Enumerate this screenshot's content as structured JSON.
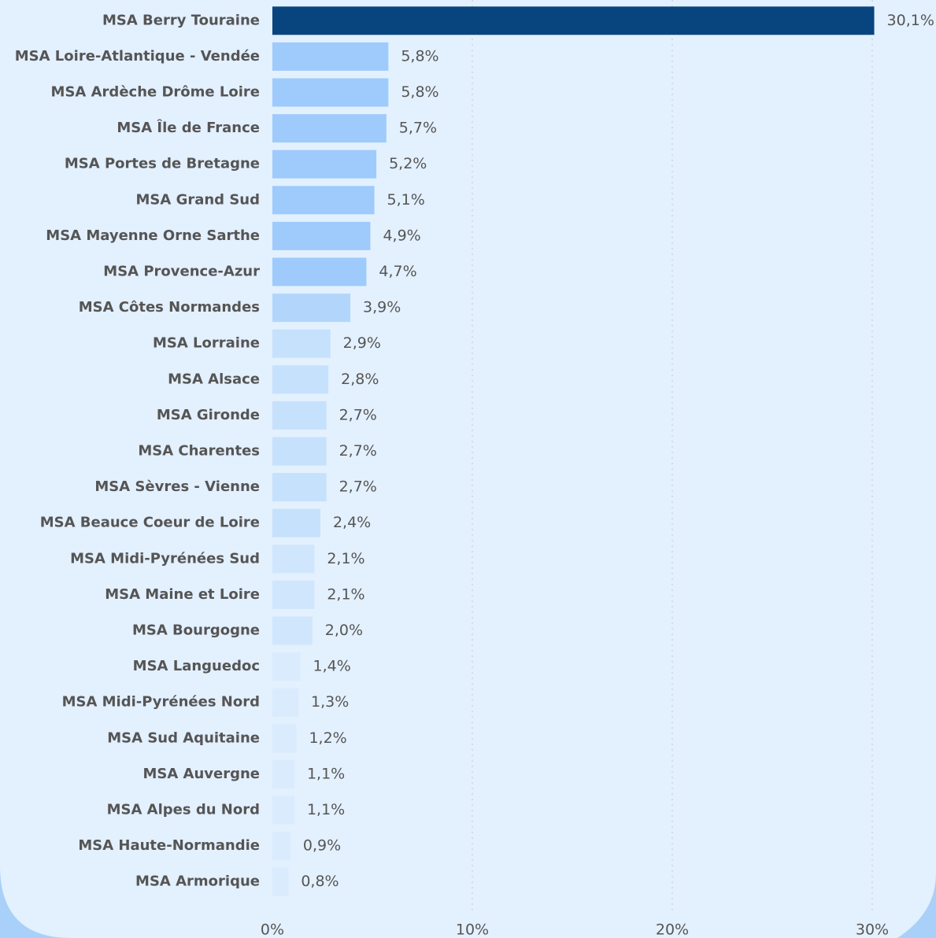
{
  "chart_data": {
    "type": "barh",
    "categories": [
      "MSA Berry Touraine",
      "MSA Loire-Atlantique - Vendée",
      "MSA Ardèche Drôme Loire",
      "MSA Île de France",
      "MSA Portes de Bretagne",
      "MSA Grand Sud",
      "MSA Mayenne Orne Sarthe",
      "MSA Provence-Azur",
      "MSA Côtes Normandes",
      "MSA Lorraine",
      "MSA Alsace",
      "MSA Gironde",
      "MSA Charentes",
      "MSA Sèvres - Vienne",
      "MSA Beauce Coeur de Loire",
      "MSA Midi-Pyrénées Sud",
      "MSA Maine et Loire",
      "MSA Bourgogne",
      "MSA Languedoc",
      "MSA Midi-Pyrénées Nord",
      "MSA Sud Aquitaine",
      "MSA Auvergne",
      "MSA Alpes du Nord",
      "MSA Haute-Normandie",
      "MSA Armorique"
    ],
    "values": [
      30.1,
      5.8,
      5.8,
      5.7,
      5.2,
      5.1,
      4.9,
      4.7,
      3.9,
      2.9,
      2.8,
      2.7,
      2.7,
      2.7,
      2.4,
      2.1,
      2.1,
      2.0,
      1.4,
      1.3,
      1.2,
      1.1,
      1.1,
      0.9,
      0.8
    ],
    "value_labels": [
      "30,1%",
      "5,8%",
      "5,8%",
      "5,7%",
      "5,2%",
      "5,1%",
      "4,9%",
      "4,7%",
      "3,9%",
      "2,9%",
      "2,8%",
      "2,7%",
      "2,7%",
      "2,7%",
      "2,4%",
      "2,1%",
      "2,1%",
      "2,0%",
      "1,4%",
      "1,3%",
      "1,2%",
      "1,1%",
      "1,1%",
      "0,9%",
      "0,8%"
    ],
    "colors": [
      "#08457e",
      "#9ecbfb",
      "#9ecbfb",
      "#9ecbfb",
      "#9ecbfb",
      "#9ecbfb",
      "#9ecbfb",
      "#9ecbfb",
      "#b2d6fb",
      "#c6e1fc",
      "#c6e1fc",
      "#c6e1fc",
      "#c6e1fc",
      "#c6e1fc",
      "#c6e1fc",
      "#d0e6fc",
      "#d0e6fc",
      "#d0e6fc",
      "#d9ebfd",
      "#d9ebfd",
      "#d9ebfd",
      "#d9ebfd",
      "#d9ebfd",
      "#d9ebfd",
      "#d9ebfd"
    ],
    "xlim": [
      0,
      30
    ],
    "xticks": [
      {
        "value": 0,
        "label": "0%"
      },
      {
        "value": 10,
        "label": "10%"
      },
      {
        "value": 20,
        "label": "20%"
      },
      {
        "value": 30,
        "label": "30%"
      }
    ],
    "grid": true
  }
}
